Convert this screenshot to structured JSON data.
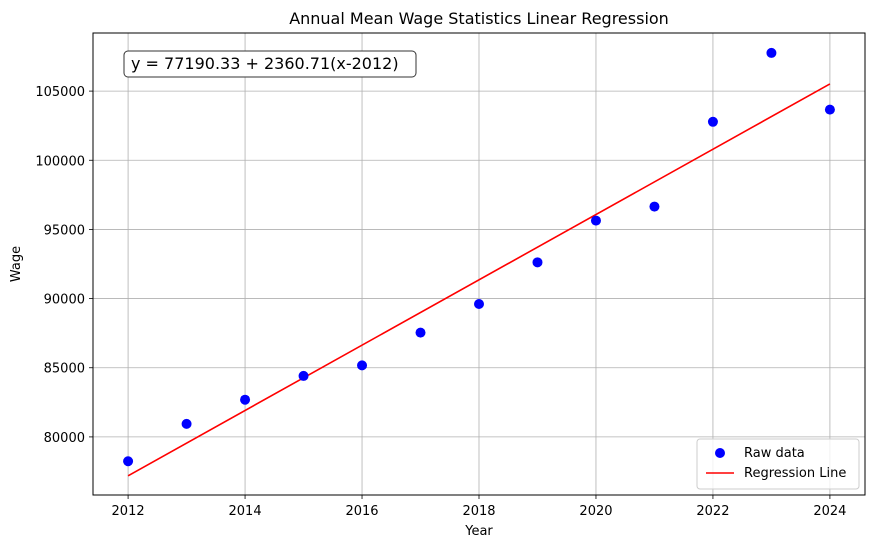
{
  "chart_data": {
    "type": "scatter",
    "title": "Annual Mean Wage Statistics Linear Regression",
    "xlabel": "Year",
    "ylabel": "Wage",
    "xlim": [
      2011.4,
      2024.6
    ],
    "ylim": [
      75800,
      109200
    ],
    "x_ticks": [
      2012,
      2014,
      2016,
      2018,
      2020,
      2022,
      2024
    ],
    "y_ticks": [
      80000,
      85000,
      90000,
      95000,
      100000,
      105000
    ],
    "grid": true,
    "legend_position": "lower-right",
    "annotation": "y = 77190.33 + 2360.71(x-2012)",
    "series": [
      {
        "name": "Raw data",
        "kind": "scatter",
        "color": "#0000ff",
        "x": [
          2012,
          2013,
          2014,
          2015,
          2016,
          2017,
          2018,
          2019,
          2020,
          2021,
          2022,
          2023,
          2024
        ],
        "y": [
          78240,
          80940,
          82690,
          84410,
          85170,
          87540,
          89610,
          92620,
          95640,
          96650,
          102780,
          107760,
          103660
        ]
      },
      {
        "name": "Regression Line",
        "kind": "line",
        "color": "#ff0000",
        "intercept": 77190.33,
        "slope": 2360.71,
        "x_offset": 2012,
        "x": [
          2012,
          2024
        ]
      }
    ]
  }
}
